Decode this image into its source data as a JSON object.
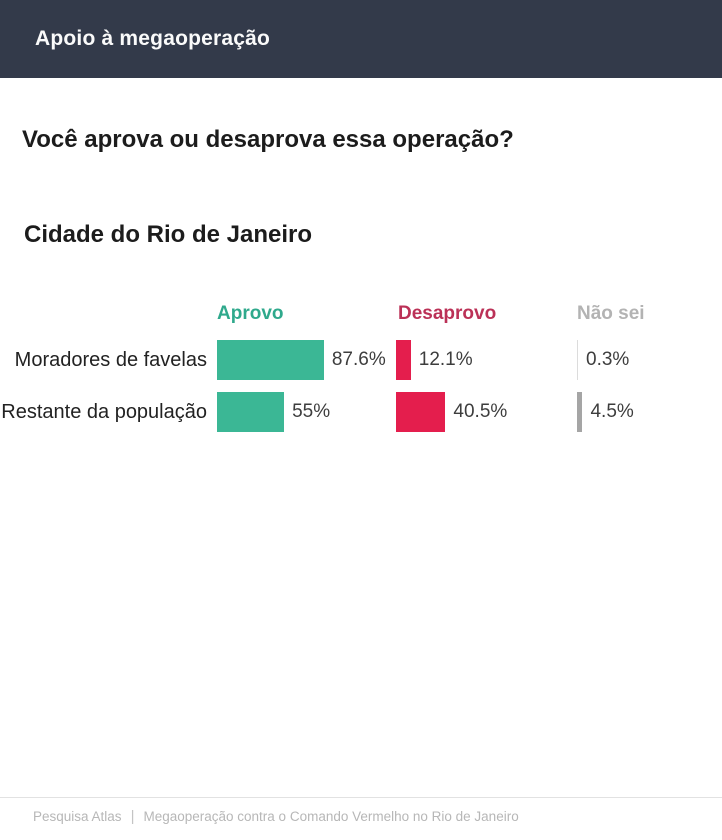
{
  "header": {
    "title": "Apoio à megaoperação",
    "bg_color": "#333a4a"
  },
  "chart_data": {
    "type": "bar",
    "orientation": "horizontal",
    "title": "Você aprova ou desaprova essa operação?",
    "group": "Cidade do Rio de Janeiro",
    "categories": [
      "Moradores de favelas",
      "Restante da população"
    ],
    "series": [
      {
        "name": "Aprovo",
        "values": [
          87.6,
          55
        ],
        "display": [
          "87.6%",
          "55%"
        ],
        "bar_color": "#3bb795",
        "header_color": "#2fa98c"
      },
      {
        "name": "Desaprovo",
        "values": [
          12.1,
          40.5
        ],
        "display": [
          "12.1%",
          "40.5%"
        ],
        "bar_color": "#e41e4d",
        "header_color": "#bb3157"
      },
      {
        "name": "Não sei",
        "values": [
          0.3,
          4.5
        ],
        "display": [
          "0.3%",
          "4.5%"
        ],
        "bar_color": "#a5a5a5",
        "header_color": "#b3b3b3"
      }
    ],
    "xlim": [
      0,
      100
    ],
    "legend_position": "column-headers",
    "grid": false
  },
  "footer": {
    "source": "Pesquisa Atlas",
    "separator": "|",
    "note": "Megaoperação contra o Comando Vermelho no Rio de Janeiro"
  }
}
